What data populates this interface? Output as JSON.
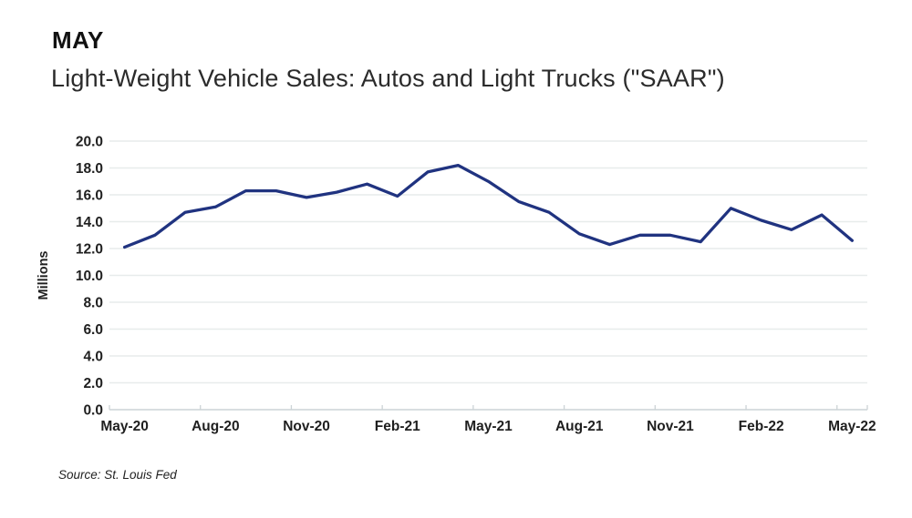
{
  "header": {
    "kicker": "MAY",
    "title": "Light-Weight Vehicle Sales: Autos and Light Trucks (\"SAAR\")"
  },
  "footer": {
    "source": "Source: St. Louis Fed"
  },
  "chart_data": {
    "type": "line",
    "title": "Light-Weight Vehicle Sales: Autos and Light Trucks (\"SAAR\")",
    "xlabel": "",
    "ylabel": "Millions",
    "categories": [
      "May-20",
      "Jun-20",
      "Jul-20",
      "Aug-20",
      "Sep-20",
      "Oct-20",
      "Nov-20",
      "Dec-20",
      "Jan-21",
      "Feb-21",
      "Mar-21",
      "Apr-21",
      "May-21",
      "Jun-21",
      "Jul-21",
      "Aug-21",
      "Sep-21",
      "Oct-21",
      "Nov-21",
      "Dec-21",
      "Jan-22",
      "Feb-22",
      "Mar-22",
      "Apr-22",
      "May-22"
    ],
    "series": [
      {
        "name": "Light-Weight Vehicle Sales (SAAR, Millions)",
        "values": [
          12.1,
          13.0,
          14.7,
          15.1,
          16.3,
          16.3,
          15.8,
          16.2,
          16.8,
          15.9,
          17.7,
          18.2,
          17.0,
          15.5,
          14.7,
          13.1,
          12.3,
          13.0,
          13.0,
          12.5,
          15.0,
          14.1,
          13.4,
          14.5,
          12.6
        ]
      }
    ],
    "x_tick_labels": [
      "May-20",
      "Aug-20",
      "Nov-20",
      "Feb-21",
      "May-21",
      "Aug-21",
      "Nov-21",
      "Feb-22",
      "May-22"
    ],
    "x_tick_interval": 3,
    "ylim": [
      0.0,
      20.0
    ],
    "y_tick_step": 2.0,
    "y_tick_labels": [
      "0.0",
      "2.0",
      "4.0",
      "6.0",
      "8.0",
      "10.0",
      "12.0",
      "14.0",
      "16.0",
      "18.0",
      "20.0"
    ],
    "grid": true,
    "legend_position": "none",
    "colors": {
      "line": "#203380",
      "gridline": "#e7eceb",
      "axis": "#ccd3d6",
      "tick_text": "#1f1f1f"
    }
  }
}
